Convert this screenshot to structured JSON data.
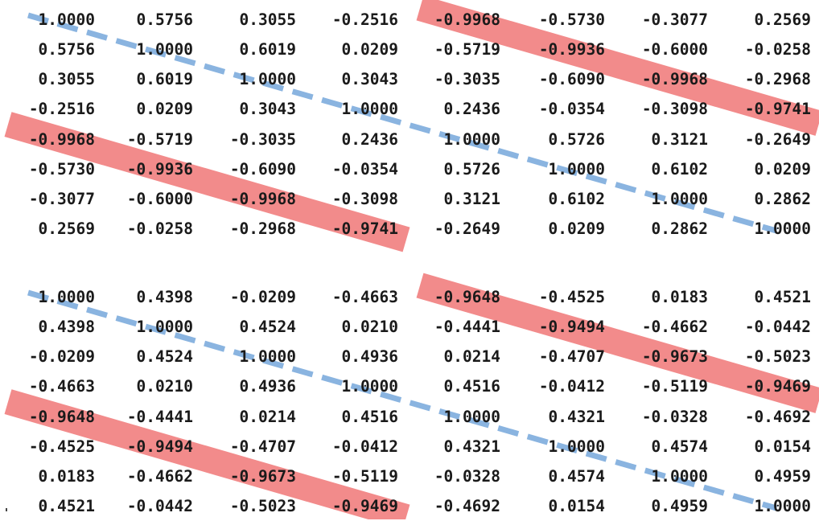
{
  "highlight_color": "#f28b8b",
  "diagonal_color": "#8ab4e0",
  "matrices": [
    {
      "rows": [
        [
          "1.0000",
          "0.5756",
          "0.3055",
          "-0.2516",
          "-0.9968",
          "-0.5730",
          "-0.3077",
          "0.2569"
        ],
        [
          "0.5756",
          "1.0000",
          "0.6019",
          "0.0209",
          "-0.5719",
          "-0.9936",
          "-0.6000",
          "-0.0258"
        ],
        [
          "0.3055",
          "0.6019",
          "1.0000",
          "0.3043",
          "-0.3035",
          "-0.6090",
          "-0.9968",
          "-0.2968"
        ],
        [
          "-0.2516",
          "0.0209",
          "0.3043",
          "1.0000",
          "0.2436",
          "-0.0354",
          "-0.3098",
          "-0.9741"
        ],
        [
          "-0.9968",
          "-0.5719",
          "-0.3035",
          "0.2436",
          "1.0000",
          "0.5726",
          "0.3121",
          "-0.2649"
        ],
        [
          "-0.5730",
          "-0.9936",
          "-0.6090",
          "-0.0354",
          "0.5726",
          "1.0000",
          "0.6102",
          "0.0209"
        ],
        [
          "-0.3077",
          "-0.6000",
          "-0.9968",
          "-0.3098",
          "0.3121",
          "0.6102",
          "1.0000",
          "0.2862"
        ],
        [
          "0.2569",
          "-0.0258",
          "-0.2968",
          "-0.9741",
          "-0.2649",
          "0.0209",
          "0.2862",
          "1.0000"
        ]
      ]
    },
    {
      "rows": [
        [
          "1.0000",
          "0.4398",
          "-0.0209",
          "-0.4663",
          "-0.9648",
          "-0.4525",
          "0.0183",
          "0.4521"
        ],
        [
          "0.4398",
          "1.0000",
          "0.4524",
          "0.0210",
          "-0.4441",
          "-0.9494",
          "-0.4662",
          "-0.0442"
        ],
        [
          "-0.0209",
          "0.4524",
          "1.0000",
          "0.4936",
          "0.0214",
          "-0.4707",
          "-0.9673",
          "-0.5023"
        ],
        [
          "-0.4663",
          "0.0210",
          "0.4936",
          "1.0000",
          "0.4516",
          "-0.0412",
          "-0.5119",
          "-0.9469"
        ],
        [
          "-0.9648",
          "-0.4441",
          "0.0214",
          "0.4516",
          "1.0000",
          "0.4321",
          "-0.0328",
          "-0.4692"
        ],
        [
          "-0.4525",
          "-0.9494",
          "-0.4707",
          "-0.0412",
          "0.4321",
          "1.0000",
          "0.4574",
          "0.0154"
        ],
        [
          "0.0183",
          "-0.4662",
          "-0.9673",
          "-0.5119",
          "-0.0328",
          "0.4574",
          "1.0000",
          "0.4959"
        ],
        [
          "0.4521",
          "-0.0442",
          "-0.5023",
          "-0.9469",
          "-0.4692",
          "0.0154",
          "0.4959",
          "1.0000"
        ]
      ]
    }
  ]
}
